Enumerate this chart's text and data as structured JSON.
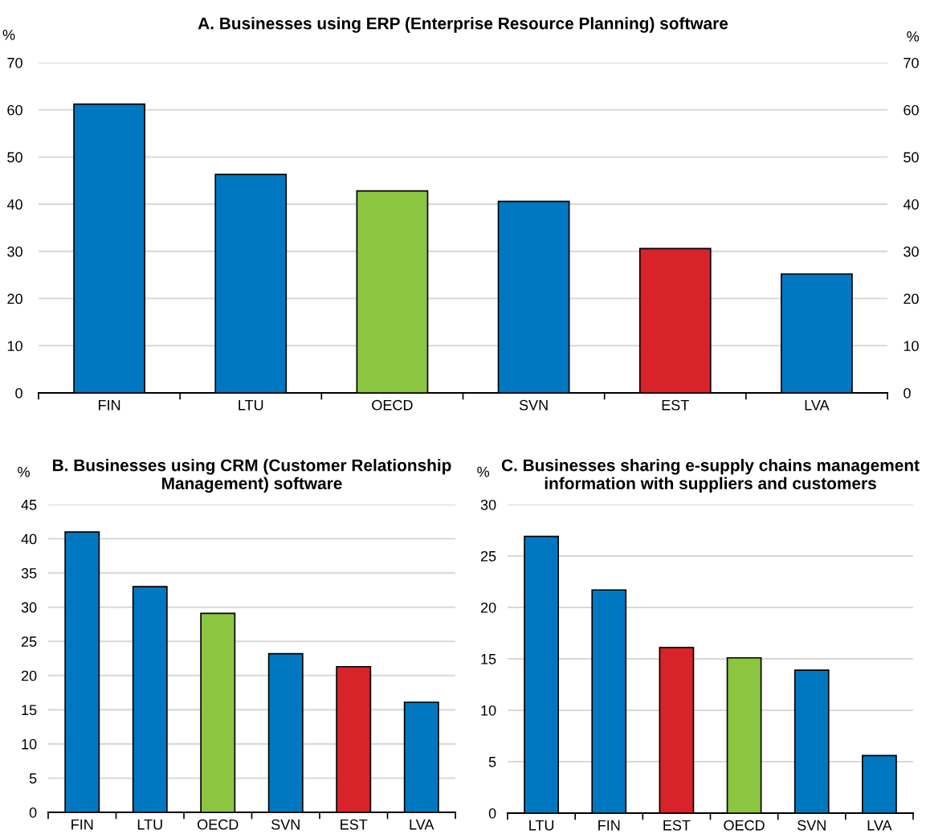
{
  "chart_data": [
    {
      "type": "bar",
      "title": "A. Businesses using ERP (Enterprise Resource Planning) software",
      "ylabel": "%",
      "y2label": "%",
      "categories": [
        "FIN",
        "LTU",
        "OECD",
        "SVN",
        "EST",
        "LVA"
      ],
      "values": [
        61.2,
        46.3,
        42.8,
        40.6,
        30.6,
        25.2
      ],
      "colors": [
        "#0078c1",
        "#0078c1",
        "#8cc641",
        "#0078c1",
        "#d8232a",
        "#0078c1"
      ],
      "ylim": [
        0,
        70
      ],
      "yticks": [
        0,
        10,
        20,
        30,
        40,
        50,
        60,
        70
      ],
      "y2lim": [
        0,
        70
      ],
      "y2ticks": [
        0,
        10,
        20,
        30,
        40,
        50,
        60,
        70
      ],
      "grid": "y",
      "legend": false
    },
    {
      "type": "bar",
      "title": "B. Businesses using CRM (Customer Relationship Management) software",
      "ylabel": "%",
      "categories": [
        "FIN",
        "LTU",
        "OECD",
        "SVN",
        "EST",
        "LVA"
      ],
      "values": [
        41.0,
        33.0,
        29.1,
        23.2,
        21.3,
        16.1
      ],
      "colors": [
        "#0078c1",
        "#0078c1",
        "#8cc641",
        "#0078c1",
        "#d8232a",
        "#0078c1"
      ],
      "ylim": [
        0,
        45
      ],
      "yticks": [
        0,
        5,
        10,
        15,
        20,
        25,
        30,
        35,
        40,
        45
      ],
      "grid": "y",
      "legend": false
    },
    {
      "type": "bar",
      "title": "C. Businesses sharing e-supply chains management information with suppliers and customers",
      "ylabel": "%",
      "categories": [
        "LTU",
        "FIN",
        "EST",
        "OECD",
        "SVN",
        "LVA"
      ],
      "values": [
        26.9,
        21.7,
        16.1,
        15.1,
        13.9,
        5.6
      ],
      "colors": [
        "#0078c1",
        "#0078c1",
        "#d8232a",
        "#8cc641",
        "#0078c1",
        "#0078c1"
      ],
      "ylim": [
        0,
        30
      ],
      "yticks": [
        0,
        5,
        10,
        15,
        20,
        25,
        30
      ],
      "grid": "y",
      "legend": false
    }
  ]
}
